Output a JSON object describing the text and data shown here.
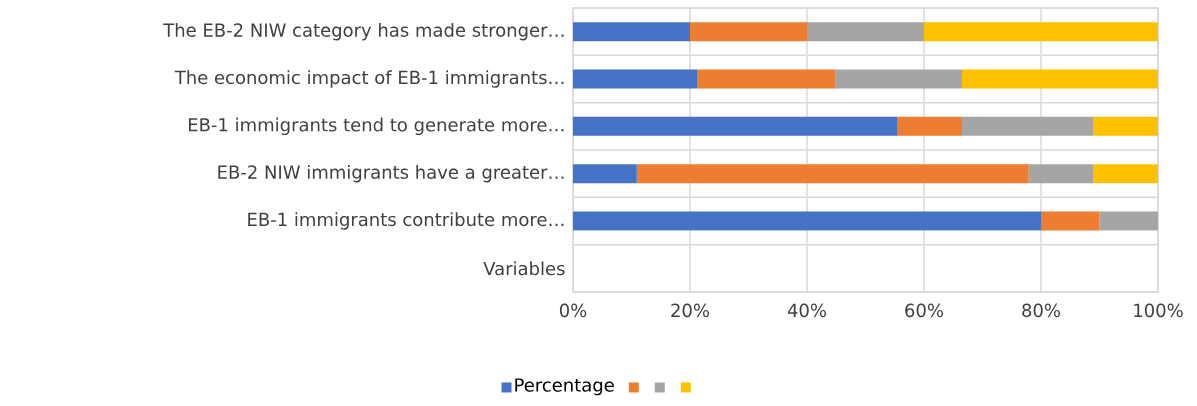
{
  "chart_data": {
    "type": "bar",
    "orientation": "horizontal",
    "stacked": true,
    "categories": [
      "The EB-2 NIW category has made stronger…",
      "The economic impact of EB-1 immigrants…",
      "EB-1 immigrants tend to generate more…",
      "EB-2 NIW immigrants have a greater…",
      "EB-1 immigrants contribute more…",
      "Variables"
    ],
    "series": [
      {
        "name": "Percentage",
        "color": "#4472c4",
        "values": [
          20,
          21.3,
          55.5,
          10.9,
          80,
          null
        ]
      },
      {
        "color": "#ed7d31",
        "values": [
          20,
          23.6,
          11,
          67,
          10,
          null
        ]
      },
      {
        "color": "#a5a5a5",
        "values": [
          20,
          21.6,
          22.4,
          11,
          10,
          null
        ]
      },
      {
        "color": "#ffc000",
        "values": [
          40,
          33.5,
          11.1,
          11.1,
          0,
          null
        ]
      }
    ],
    "xlim": [
      0,
      100
    ],
    "xticks": [
      {
        "value": 0,
        "label": "0%"
      },
      {
        "value": 20,
        "label": "20%"
      },
      {
        "value": 40,
        "label": "40%"
      },
      {
        "value": 60,
        "label": "60%"
      },
      {
        "value": 80,
        "label": "80%"
      },
      {
        "value": 100,
        "label": "100%"
      }
    ],
    "grid": true,
    "legend": "bottom"
  }
}
